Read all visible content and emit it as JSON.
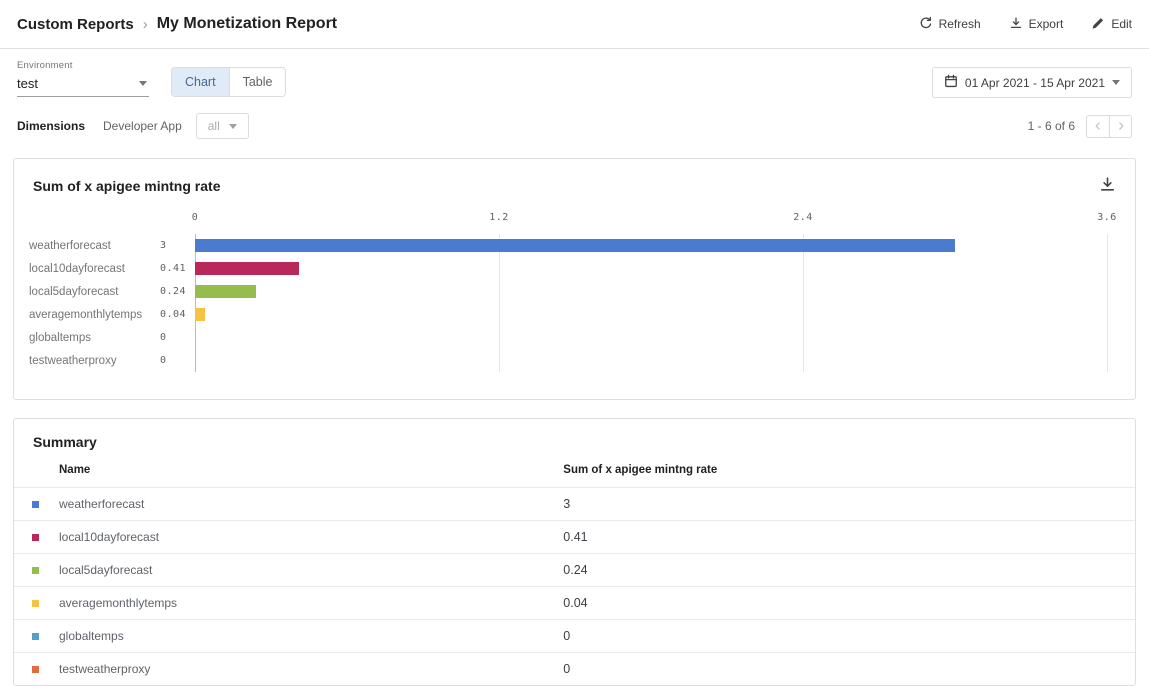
{
  "header": {
    "breadcrumb": {
      "root": "Custom Reports",
      "separator": "›",
      "current": "My Monetization Report"
    },
    "actions": [
      {
        "id": "refresh",
        "label": "Refresh"
      },
      {
        "id": "export",
        "label": "Export"
      },
      {
        "id": "edit",
        "label": "Edit"
      }
    ]
  },
  "controls": {
    "environment": {
      "label": "Environment",
      "value": "test"
    },
    "view_toggle": {
      "options": [
        "Chart",
        "Table"
      ],
      "selected": "Chart"
    },
    "date_range": "01 Apr 2021 - 15 Apr 2021"
  },
  "dimensions": {
    "label": "Dimensions",
    "dimension_name": "Developer App",
    "dropdown_value": "all",
    "pagination": "1 - 6 of 6"
  },
  "chart_card": {
    "title": "Sum of x apigee mintng rate"
  },
  "chart_data": {
    "type": "bar",
    "orientation": "horizontal",
    "title": "Sum of x apigee mintng rate",
    "categories": [
      "weatherforecast",
      "local10dayforecast",
      "local5dayforecast",
      "averagemonthlytemps",
      "globaltemps",
      "testweatherproxy"
    ],
    "values": [
      3,
      0.41,
      0.24,
      0.04,
      0,
      0
    ],
    "value_labels": [
      "3",
      "0.41",
      "0.24",
      "0.04",
      "0",
      "0"
    ],
    "colors": [
      "#4a7bce",
      "#b8285a",
      "#94bd4e",
      "#f5c242",
      "#54a0c4",
      "#e06c3d"
    ],
    "x_ticks": [
      "0",
      "1.2",
      "2.4",
      "3.6"
    ],
    "xlim": [
      0,
      3.6
    ],
    "grid": true,
    "legend_position": "none"
  },
  "summary": {
    "title": "Summary",
    "columns": [
      "Name",
      "Sum of x apigee mintng rate"
    ],
    "rows": [
      {
        "name": "weatherforecast",
        "value": "3"
      },
      {
        "name": "local10dayforecast",
        "value": "0.41"
      },
      {
        "name": "local5dayforecast",
        "value": "0.24"
      },
      {
        "name": "averagemonthlytemps",
        "value": "0.04"
      },
      {
        "name": "globaltemps",
        "value": "0"
      },
      {
        "name": "testweatherproxy",
        "value": "0"
      }
    ]
  }
}
